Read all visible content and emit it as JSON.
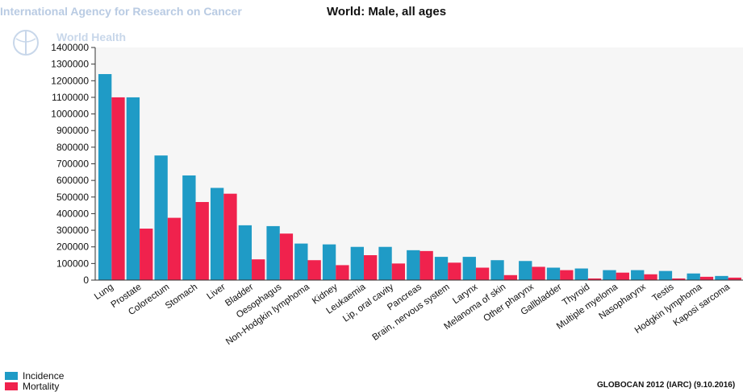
{
  "header": {
    "org_name": "International Agency for Research on Cancer",
    "org_name2": "World Health"
  },
  "chart_data": {
    "type": "bar",
    "title": "World: Male, all ages",
    "xlabel": "",
    "ylabel": "",
    "ylim": [
      0,
      1400000
    ],
    "yticks": [
      0,
      100000,
      200000,
      300000,
      400000,
      500000,
      600000,
      700000,
      800000,
      900000,
      1000000,
      1100000,
      1200000,
      1300000,
      1400000
    ],
    "grid": false,
    "legend_position": "bottom-left",
    "categories": [
      "Lung",
      "Prostate",
      "Colorectum",
      "Stomach",
      "Liver",
      "Bladder",
      "Oesophagus",
      "Non-Hodgkin lymphoma",
      "Kidney",
      "Leukaemia",
      "Lip, oral cavity",
      "Pancreas",
      "Brain, nervous system",
      "Larynx",
      "Melanoma of skin",
      "Other pharynx",
      "Gallbladder",
      "Thyroid",
      "Multiple myeloma",
      "Nasopharynx",
      "Testis",
      "Hodgkin lymphoma",
      "Kaposi sarcoma"
    ],
    "series": [
      {
        "name": "Incidence",
        "color": "#1f9bc6",
        "values": [
          1240000,
          1100000,
          750000,
          630000,
          555000,
          330000,
          325000,
          220000,
          215000,
          200000,
          200000,
          180000,
          140000,
          140000,
          120000,
          115000,
          75000,
          70000,
          60000,
          60000,
          55000,
          40000,
          25000
        ]
      },
      {
        "name": "Mortality",
        "color": "#f0224d",
        "values": [
          1100000,
          310000,
          375000,
          470000,
          520000,
          125000,
          280000,
          120000,
          90000,
          150000,
          100000,
          175000,
          105000,
          75000,
          30000,
          80000,
          60000,
          10000,
          45000,
          35000,
          10000,
          20000,
          15000
        ]
      }
    ]
  },
  "source": "GLOBOCAN 2012 (IARC) (9.10.2016)"
}
